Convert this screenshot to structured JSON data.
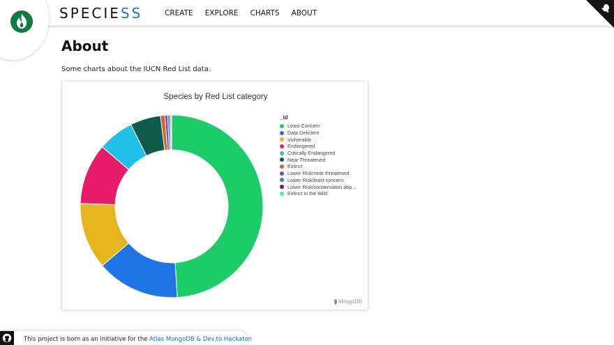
{
  "header": {
    "brand_main": "SPECIE",
    "brand_accent": "SS",
    "nav": [
      "CREATE",
      "EXPLORE",
      "CHARTS",
      "ABOUT"
    ]
  },
  "page": {
    "title": "About",
    "intro": "Some charts about the IUCN Red List data."
  },
  "chart_data": {
    "type": "pie",
    "title": "Species by Red List category",
    "legend_title": "_id",
    "legend_position": "right",
    "categories": [
      "Least Concern",
      "Data Deficient",
      "Vulnerable",
      "Endangered",
      "Critically Endangered",
      "Near Threatened",
      "Extinct",
      "Lower Risk/near threatened",
      "Lower Risk/least concern",
      "Lower Risk/conservation dep...",
      "Extinct in the Wild"
    ],
    "values": [
      50.0,
      15.0,
      12.0,
      11.0,
      6.5,
      5.5,
      0.8,
      0.5,
      0.4,
      0.2,
      0.1
    ],
    "colors": [
      "#1bcc68",
      "#1f74e6",
      "#e5b51e",
      "#e61c6a",
      "#1fc1e6",
      "#0e5c49",
      "#d9632b",
      "#7d48a6",
      "#2b8fbd",
      "#a0112c",
      "#57e4a8"
    ],
    "watermark": "MongoDB"
  },
  "footer": {
    "text": "This project is born as an initiative for the ",
    "link": "Atlas MongoDB & Dev.to Hackaton"
  },
  "colors": {
    "brand_accent": "#1a73c7",
    "logo_green": "#137a44"
  }
}
